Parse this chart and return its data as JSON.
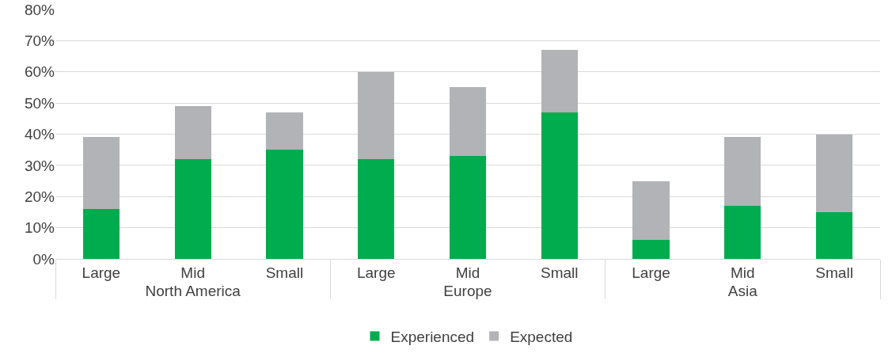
{
  "chart_data": {
    "type": "bar",
    "stacked": true,
    "categories": [
      "Large",
      "Mid",
      "Small",
      "Large",
      "Mid",
      "Small",
      "Large",
      "Mid",
      "Small"
    ],
    "annotations": [
      "North America",
      "Europe",
      "Asia"
    ],
    "series": [
      {
        "name": "Experienced",
        "color": "#00ac4e",
        "values": [
          16,
          32,
          35,
          32,
          33,
          47,
          6,
          17,
          15
        ]
      },
      {
        "name": "Expected",
        "color": "#b1b3b6",
        "values": [
          23,
          17,
          12,
          28,
          22,
          20,
          19,
          22,
          25
        ]
      }
    ],
    "ylim": [
      0,
      80
    ],
    "yticks": [
      {
        "value": 0,
        "label": "0%"
      },
      {
        "value": 10,
        "label": "10%"
      },
      {
        "value": 20,
        "label": "20%"
      },
      {
        "value": 30,
        "label": "30%"
      },
      {
        "value": 40,
        "label": "40%"
      },
      {
        "value": 50,
        "label": "50%"
      },
      {
        "value": 60,
        "label": "60%"
      },
      {
        "value": 70,
        "label": "70%"
      },
      {
        "value": 80,
        "label": "80%"
      }
    ],
    "grid": "y",
    "legend": "bottom"
  }
}
